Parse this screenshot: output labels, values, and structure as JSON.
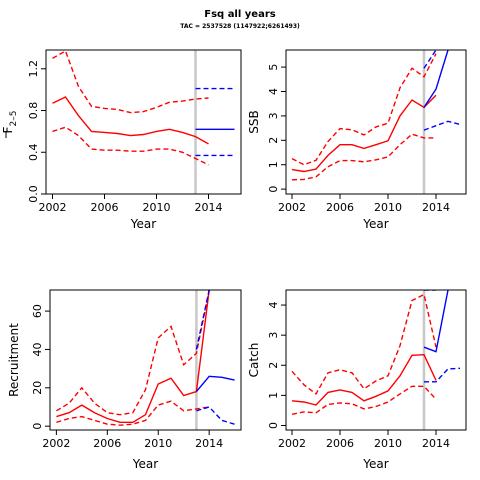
{
  "figure": {
    "title": "Fsq all years",
    "subtitle": "TAC = 2537528 (1147922;6261493)",
    "colors": {
      "estimate": "#ff0000",
      "forecast": "#0000ff",
      "divider": "#c8c8c8",
      "axis": "#000000"
    }
  },
  "chart_data": [
    {
      "type": "line",
      "panel": "top-left",
      "ylabel": "F2-5",
      "ylabel_main": "F",
      "ylabel_sub": "2–5",
      "ylabel_bar": true,
      "xlabel": "Year",
      "xlim": [
        2001.5,
        2016.5
      ],
      "ylim": [
        0,
        1.38
      ],
      "xticks": [
        "2002",
        "2006",
        "2010",
        "2014"
      ],
      "yticks": [
        "0.0",
        "0.4",
        "0.8",
        "1.2"
      ],
      "divider_x": 2013,
      "series": [
        {
          "role": "estimate",
          "style": "solid",
          "x": [
            2002,
            2003,
            2004,
            2005,
            2006,
            2007,
            2008,
            2009,
            2010,
            2011,
            2012,
            2013,
            2014
          ],
          "y": [
            0.87,
            0.93,
            0.75,
            0.6,
            0.59,
            0.58,
            0.56,
            0.57,
            0.6,
            0.62,
            0.59,
            0.55,
            0.48
          ]
        },
        {
          "role": "estimate-upper",
          "style": "dashed",
          "x": [
            2002,
            2003,
            2004,
            2005,
            2006,
            2007,
            2008,
            2009,
            2010,
            2011,
            2012,
            2013,
            2014
          ],
          "y": [
            1.3,
            1.37,
            1.03,
            0.84,
            0.82,
            0.81,
            0.78,
            0.79,
            0.83,
            0.88,
            0.89,
            0.91,
            0.92
          ]
        },
        {
          "role": "estimate-lower",
          "style": "dashed",
          "x": [
            2002,
            2003,
            2004,
            2005,
            2006,
            2007,
            2008,
            2009,
            2010,
            2011,
            2012,
            2013,
            2014
          ],
          "y": [
            0.6,
            0.64,
            0.56,
            0.43,
            0.42,
            0.42,
            0.41,
            0.41,
            0.43,
            0.43,
            0.4,
            0.34,
            0.28
          ]
        },
        {
          "role": "forecast",
          "style": "solid",
          "x": [
            2013,
            2014,
            2015,
            2016
          ],
          "y": [
            0.62,
            0.62,
            0.62,
            0.62
          ]
        },
        {
          "role": "forecast-upper",
          "style": "dashed",
          "x": [
            2013,
            2014,
            2015,
            2016
          ],
          "y": [
            1.01,
            1.01,
            1.01,
            1.01
          ]
        },
        {
          "role": "forecast-lower",
          "style": "dashed",
          "x": [
            2013,
            2014,
            2015,
            2016
          ],
          "y": [
            0.37,
            0.37,
            0.37,
            0.37
          ]
        }
      ]
    },
    {
      "type": "line",
      "panel": "top-right",
      "ylabel": "SSB",
      "xlabel": "Year",
      "xlim": [
        2001.5,
        2016.5
      ],
      "ylim": [
        -0.2,
        5.7
      ],
      "xticks": [
        "2002",
        "2006",
        "2010",
        "2014"
      ],
      "yticks": [
        "0",
        "1",
        "2",
        "3",
        "4",
        "5"
      ],
      "divider_x": 2013,
      "series": [
        {
          "role": "estimate",
          "style": "solid",
          "x": [
            2002,
            2003,
            2004,
            2005,
            2006,
            2007,
            2008,
            2009,
            2010,
            2011,
            2012,
            2013,
            2014
          ],
          "y": [
            0.8,
            0.72,
            0.82,
            1.38,
            1.82,
            1.82,
            1.67,
            1.82,
            1.98,
            3.0,
            3.65,
            3.35,
            3.85
          ]
        },
        {
          "role": "estimate-upper",
          "style": "dashed",
          "x": [
            2002,
            2003,
            2004,
            2005,
            2006,
            2007,
            2008,
            2009,
            2010,
            2011,
            2012,
            2013,
            2014
          ],
          "y": [
            1.25,
            1.0,
            1.18,
            1.95,
            2.48,
            2.43,
            2.22,
            2.55,
            2.7,
            4.15,
            4.95,
            4.6,
            5.55
          ]
        },
        {
          "role": "estimate-lower",
          "style": "dashed",
          "x": [
            2002,
            2003,
            2004,
            2005,
            2006,
            2007,
            2008,
            2009,
            2010,
            2011,
            2012,
            2013,
            2014
          ],
          "y": [
            0.38,
            0.4,
            0.5,
            0.92,
            1.17,
            1.17,
            1.12,
            1.2,
            1.32,
            1.82,
            2.25,
            2.1,
            2.1
          ]
        },
        {
          "role": "forecast",
          "style": "solid",
          "x": [
            2013,
            2014,
            2015
          ],
          "y": [
            3.35,
            4.1,
            5.7
          ]
        },
        {
          "role": "forecast-upper",
          "style": "dashed",
          "x": [
            2013,
            2014
          ],
          "y": [
            4.95,
            5.7
          ]
        },
        {
          "role": "forecast-lower",
          "style": "dashed",
          "x": [
            2013,
            2014,
            2015,
            2016
          ],
          "y": [
            2.42,
            2.6,
            2.78,
            2.65
          ]
        }
      ]
    },
    {
      "type": "line",
      "panel": "bottom-left",
      "ylabel": "Recruitment",
      "xlabel": "Year",
      "xlim": [
        2001.5,
        2016.5
      ],
      "ylim": [
        -2,
        71
      ],
      "xticks": [
        "2002",
        "2006",
        "2010",
        "2014"
      ],
      "yticks": [
        "0",
        "20",
        "40",
        "60"
      ],
      "divider_x": 2013,
      "series": [
        {
          "role": "estimate",
          "style": "solid",
          "x": [
            2002,
            2003,
            2004,
            2005,
            2006,
            2007,
            2008,
            2009,
            2010,
            2011,
            2012,
            2013,
            2014
          ],
          "y": [
            5,
            7,
            11,
            7,
            4,
            2,
            2,
            6,
            22,
            25,
            16,
            18,
            71
          ]
        },
        {
          "role": "estimate-upper",
          "style": "dashed",
          "x": [
            2002,
            2003,
            2004,
            2005,
            2006,
            2007,
            2008,
            2009,
            2010,
            2011,
            2012,
            2013,
            2014
          ],
          "y": [
            8,
            12,
            20,
            12,
            7,
            6,
            7,
            19,
            46,
            52,
            32,
            38,
            71
          ]
        },
        {
          "role": "estimate-lower",
          "style": "dashed",
          "x": [
            2002,
            2003,
            2004,
            2005,
            2006,
            2007,
            2008,
            2009,
            2010,
            2011,
            2012,
            2013,
            2014
          ],
          "y": [
            2,
            4,
            5,
            3,
            1,
            0.5,
            1,
            3,
            11,
            13,
            8,
            9,
            10
          ]
        },
        {
          "role": "forecast",
          "style": "solid",
          "x": [
            2013,
            2014,
            2015,
            2016
          ],
          "y": [
            18,
            26,
            25.5,
            24
          ]
        },
        {
          "role": "forecast-upper",
          "style": "dashed",
          "x": [
            2013,
            2014
          ],
          "y": [
            40,
            71
          ]
        },
        {
          "role": "forecast-lower",
          "style": "dashed",
          "x": [
            2013,
            2014,
            2015,
            2016
          ],
          "y": [
            8,
            10,
            3,
            1
          ]
        }
      ]
    },
    {
      "type": "line",
      "panel": "bottom-right",
      "ylabel": "Catch",
      "xlabel": "Year",
      "xlim": [
        2001.5,
        2016.5
      ],
      "ylim": [
        -0.15,
        4.5
      ],
      "xticks": [
        "2002",
        "2006",
        "2010",
        "2014"
      ],
      "yticks": [
        "0",
        "1",
        "2",
        "3",
        "4"
      ],
      "divider_x": 2013,
      "series": [
        {
          "role": "estimate",
          "style": "solid",
          "x": [
            2002,
            2003,
            2004,
            2005,
            2006,
            2007,
            2008,
            2009,
            2010,
            2011,
            2012,
            2013,
            2014
          ],
          "y": [
            0.82,
            0.78,
            0.68,
            1.1,
            1.18,
            1.1,
            0.82,
            0.97,
            1.15,
            1.65,
            2.33,
            2.35,
            1.5
          ]
        },
        {
          "role": "estimate-upper",
          "style": "dashed",
          "x": [
            2002,
            2003,
            2004,
            2005,
            2006,
            2007,
            2008,
            2009,
            2010,
            2011,
            2012,
            2013,
            2014
          ],
          "y": [
            1.8,
            1.35,
            1.05,
            1.75,
            1.85,
            1.75,
            1.22,
            1.48,
            1.65,
            2.65,
            4.15,
            4.35,
            2.6
          ]
        },
        {
          "role": "estimate-lower",
          "style": "dashed",
          "x": [
            2002,
            2003,
            2004,
            2005,
            2006,
            2007,
            2008,
            2009,
            2010,
            2011,
            2012,
            2013,
            2014
          ],
          "y": [
            0.37,
            0.45,
            0.42,
            0.7,
            0.75,
            0.72,
            0.55,
            0.63,
            0.78,
            1.05,
            1.3,
            1.3,
            0.87
          ]
        },
        {
          "role": "forecast",
          "style": "solid",
          "x": [
            2013,
            2014,
            2015
          ],
          "y": [
            2.6,
            2.45,
            4.5
          ]
        },
        {
          "role": "forecast-upper",
          "style": "dashed",
          "x": [
            2013,
            2014
          ],
          "y": [
            4.5,
            4.5
          ]
        },
        {
          "role": "forecast-lower",
          "style": "dashed",
          "x": [
            2013,
            2014,
            2015,
            2016
          ],
          "y": [
            1.45,
            1.45,
            1.88,
            1.9
          ]
        }
      ]
    }
  ]
}
